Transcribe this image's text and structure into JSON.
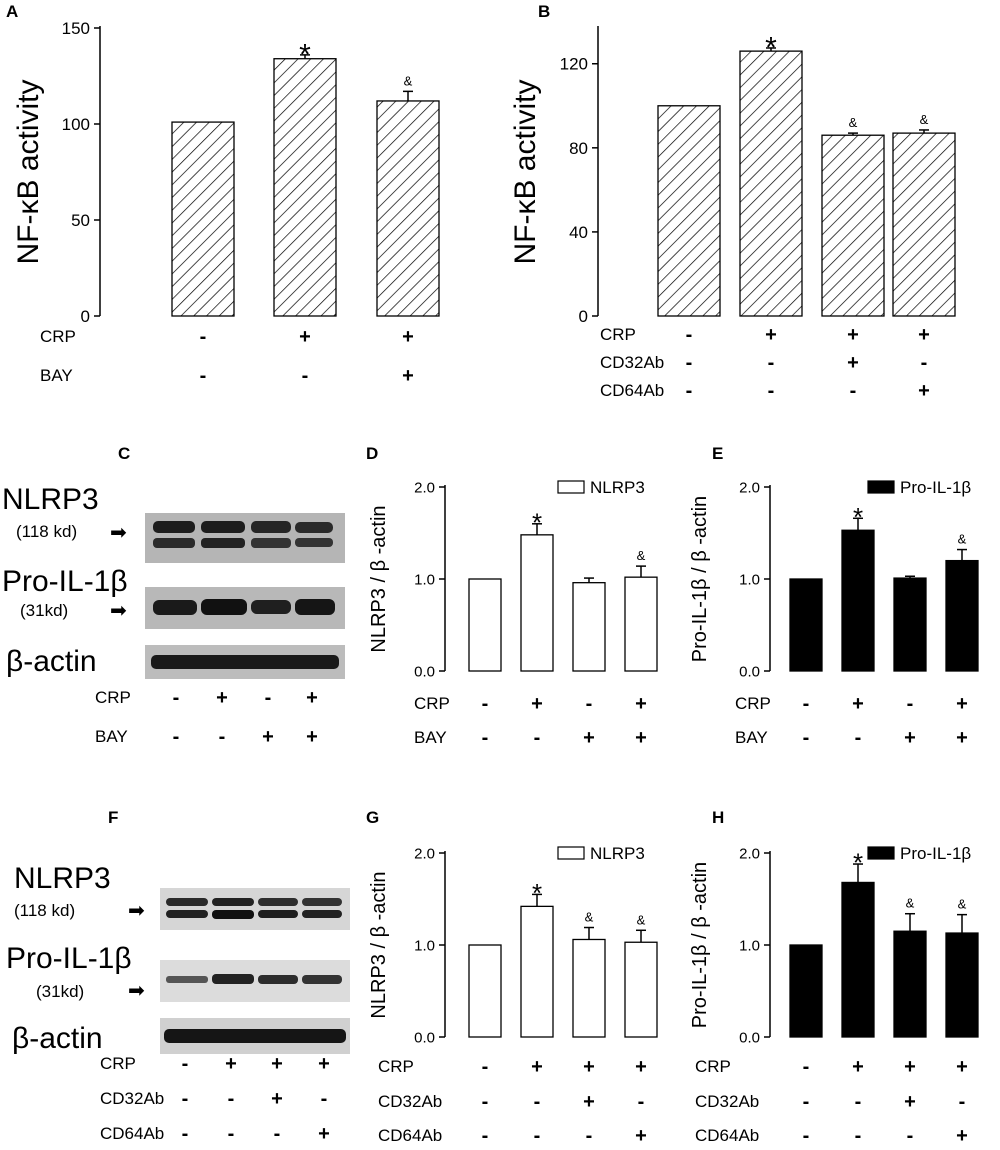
{
  "panels": {
    "A": "A",
    "B": "B",
    "C": "C",
    "D": "D",
    "E": "E",
    "F": "F",
    "G": "G",
    "H": "H"
  },
  "blots": {
    "C": {
      "nlrp3": "NLRP3",
      "nlrp3_kd": "(118 kd)",
      "proil": "Pro-IL-1β",
      "proil_kd": "(31kd)",
      "actin": "β-actin"
    },
    "F": {
      "nlrp3": "NLRP3",
      "nlrp3_kd": "(118 kd)",
      "proil": "Pro-IL-1β",
      "proil_kd": "(31kd)",
      "actin": "β-actin"
    }
  },
  "blot_conditions": {
    "C": {
      "rows": [
        {
          "label": "CRP",
          "signs": [
            "-",
            "+",
            "-",
            "+"
          ]
        },
        {
          "label": "BAY",
          "signs": [
            "-",
            "-",
            "+",
            "+"
          ]
        }
      ]
    },
    "F": {
      "rows": [
        {
          "label": "CRP",
          "signs": [
            "-",
            "+",
            "+",
            "+"
          ]
        },
        {
          "label": "CD32Ab",
          "signs": [
            "-",
            "-",
            "+",
            "-"
          ]
        },
        {
          "label": "CD64Ab",
          "signs": [
            "-",
            "-",
            "-",
            "+"
          ]
        }
      ]
    }
  },
  "colors": {
    "axis": "#000000",
    "solid_bar": "#000000",
    "open_bar": "#ffffff",
    "blot_bg": "#b8b8b8",
    "band": "#1a1a1a"
  },
  "chart_data": [
    {
      "panel": "A",
      "type": "bar",
      "fill": "hatched",
      "ylabel": "NF-κB activity",
      "ylim": [
        0,
        150
      ],
      "yticks": [
        0,
        50,
        100,
        150
      ],
      "tick_labels": [
        "0",
        "50",
        "100",
        "150"
      ],
      "values": [
        101,
        134,
        112
      ],
      "errors": [
        0,
        2,
        5
      ],
      "marks": [
        "",
        "*",
        "&"
      ],
      "conditions": [
        {
          "label": "CRP",
          "signs": [
            "-",
            "+",
            "+"
          ]
        },
        {
          "label": "BAY",
          "signs": [
            "-",
            "-",
            "+"
          ]
        }
      ]
    },
    {
      "panel": "B",
      "type": "bar",
      "fill": "hatched",
      "ylabel": "NF-κB activity",
      "ylim": [
        0,
        137
      ],
      "yticks": [
        0,
        40,
        80,
        120
      ],
      "tick_labels": [
        "0",
        "40",
        "80",
        "120"
      ],
      "values": [
        100,
        126,
        86,
        87
      ],
      "errors": [
        0,
        1.5,
        1,
        1.5
      ],
      "marks": [
        "",
        "*",
        "&",
        "&"
      ],
      "conditions": [
        {
          "label": "CRP",
          "signs": [
            "-",
            "+",
            "+",
            "+"
          ]
        },
        {
          "label": "CD32Ab",
          "signs": [
            "-",
            "-",
            "+",
            "-"
          ]
        },
        {
          "label": "CD64Ab",
          "signs": [
            "-",
            "-",
            "-",
            "+"
          ]
        }
      ]
    },
    {
      "panel": "D",
      "type": "bar",
      "fill": "open",
      "ylabel": "NLRP3 / β -actin",
      "legend": "NLRP3",
      "ylim": [
        0,
        2.0
      ],
      "yticks": [
        0,
        1,
        2
      ],
      "tick_labels": [
        "0.0",
        "1.0",
        "2.0"
      ],
      "values": [
        1.0,
        1.48,
        0.96,
        1.02
      ],
      "errors": [
        0,
        0.12,
        0.05,
        0.12
      ],
      "marks": [
        "",
        "*",
        "",
        "&"
      ],
      "conditions": [
        {
          "label": "CRP",
          "signs": [
            "-",
            "+",
            "-",
            "+"
          ]
        },
        {
          "label": "BAY",
          "signs": [
            "-",
            "-",
            "+",
            "+"
          ]
        }
      ]
    },
    {
      "panel": "E",
      "type": "bar",
      "fill": "solid",
      "ylabel": "Pro-IL-1β / β -actin",
      "legend": "Pro-IL-1β",
      "ylim": [
        0,
        2.0
      ],
      "yticks": [
        0,
        1,
        2
      ],
      "tick_labels": [
        "0.0",
        "1.0",
        "2.0"
      ],
      "values": [
        1.0,
        1.53,
        1.01,
        1.2
      ],
      "errors": [
        0,
        0.13,
        0.02,
        0.12
      ],
      "marks": [
        "",
        "*",
        "",
        "&"
      ],
      "conditions": [
        {
          "label": "CRP",
          "signs": [
            "-",
            "+",
            "-",
            "+"
          ]
        },
        {
          "label": "BAY",
          "signs": [
            "-",
            "-",
            "+",
            "+"
          ]
        }
      ]
    },
    {
      "panel": "G",
      "type": "bar",
      "fill": "open",
      "ylabel": "NLRP3 / β -actin",
      "legend": "NLRP3",
      "ylim": [
        0,
        2.0
      ],
      "yticks": [
        0,
        1,
        2
      ],
      "tick_labels": [
        "0.0",
        "1.0",
        "2.0"
      ],
      "values": [
        1.0,
        1.42,
        1.06,
        1.03
      ],
      "errors": [
        0,
        0.13,
        0.13,
        0.13
      ],
      "marks": [
        "",
        "*",
        "&",
        "&"
      ],
      "conditions": [
        {
          "label": "CRP",
          "signs": [
            "-",
            "+",
            "+",
            "+"
          ]
        },
        {
          "label": "CD32Ab",
          "signs": [
            "-",
            "-",
            "+",
            "-"
          ]
        },
        {
          "label": "CD64Ab",
          "signs": [
            "-",
            "-",
            "-",
            "+"
          ]
        }
      ]
    },
    {
      "panel": "H",
      "type": "bar",
      "fill": "solid",
      "ylabel": "Pro-IL-1β / β -actin",
      "legend": "Pro-IL-1β",
      "ylim": [
        0,
        2.0
      ],
      "yticks": [
        0,
        1,
        2
      ],
      "tick_labels": [
        "0.0",
        "1.0",
        "2.0"
      ],
      "values": [
        1.0,
        1.68,
        1.15,
        1.13
      ],
      "errors": [
        0,
        0.2,
        0.19,
        0.2
      ],
      "marks": [
        "",
        "*",
        "&",
        "&"
      ],
      "conditions": [
        {
          "label": "CRP",
          "signs": [
            "-",
            "+",
            "+",
            "+"
          ]
        },
        {
          "label": "CD32Ab",
          "signs": [
            "-",
            "-",
            "+",
            "-"
          ]
        },
        {
          "label": "CD64Ab",
          "signs": [
            "-",
            "-",
            "-",
            "+"
          ]
        }
      ]
    }
  ]
}
